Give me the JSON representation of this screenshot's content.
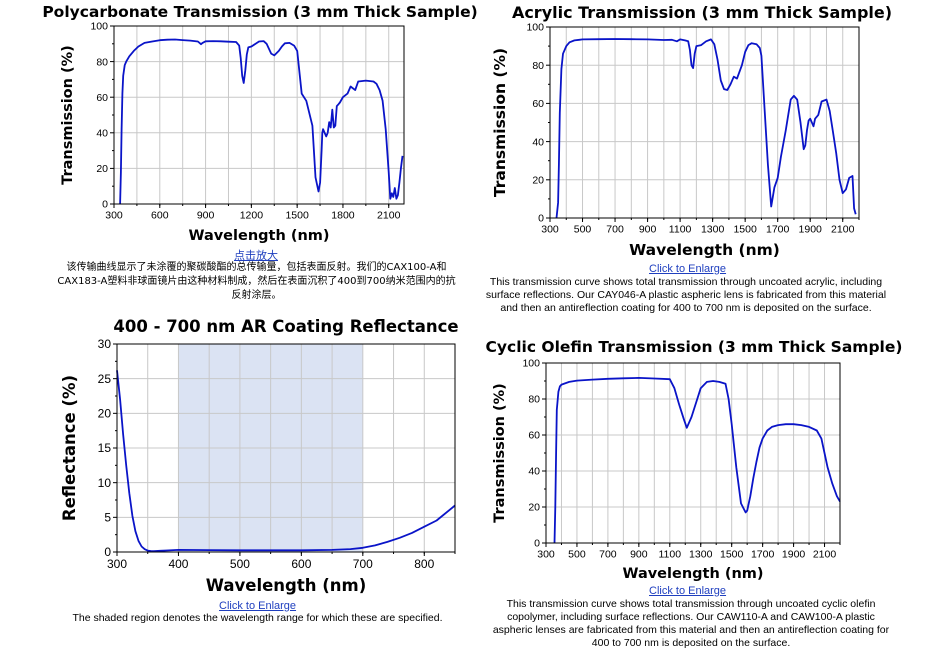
{
  "panels": {
    "polycarbonate": {
      "link": "点击放大",
      "caption": "该传输曲线显示了未涂覆的聚碳酸酯的总传输量，包括表面反射。我们的CAX100-A和CAX183-A塑料非球面镜片由这种材料制成，然后在表面沉积了400到700纳米范围内的抗反射涂层。"
    },
    "acrylic": {
      "link": "Click to Enlarge",
      "caption": "This transmission curve shows total transmission through uncoated acrylic, including surface reflections. Our CAY046-A plastic aspheric lens is fabricated from this material and then an antireflection coating for 400 to 700 nm is deposited on the surface."
    },
    "ar_coating": {
      "link": "Click to Enlarge",
      "caption": "The shaded region denotes the wavelength range for which these are specified."
    },
    "cyclic_olefin": {
      "link": "Click to Enlarge",
      "caption": "This transmission curve shows total transmission through uncoated cyclic olefin copolymer, including surface reflections. Our CAW110-A and CAW100-A plastic aspheric lenses are fabricated from this material and then an antireflection coating for 400 to 700 nm is deposited on the surface."
    }
  },
  "chart_data": [
    {
      "id": "polycarbonate",
      "type": "line",
      "title": "Polycarbonate Transmission (3 mm Thick Sample)",
      "xlabel": "Wavelength (nm)",
      "ylabel": "Transmission (%)",
      "xlim": [
        300,
        2200
      ],
      "ylim": [
        0,
        100
      ],
      "xticks": [
        300,
        600,
        900,
        1200,
        1500,
        1800,
        2100
      ],
      "yticks": [
        0,
        20,
        40,
        60,
        80,
        100
      ],
      "grid": true,
      "line_color": "#0a14c8",
      "x": [
        340,
        345,
        350,
        355,
        360,
        370,
        380,
        400,
        430,
        460,
        500,
        550,
        600,
        650,
        700,
        750,
        800,
        850,
        870,
        880,
        900,
        950,
        1000,
        1050,
        1100,
        1120,
        1130,
        1140,
        1150,
        1160,
        1170,
        1180,
        1200,
        1250,
        1280,
        1300,
        1330,
        1350,
        1380,
        1400,
        1420,
        1450,
        1480,
        1500,
        1530,
        1560,
        1600,
        1610,
        1620,
        1640,
        1650,
        1660,
        1665,
        1670,
        1680,
        1690,
        1700,
        1710,
        1720,
        1730,
        1740,
        1750,
        1760,
        1770,
        1780,
        1800,
        1830,
        1850,
        1880,
        1900,
        1950,
        2000,
        2020,
        2040,
        2060,
        2080,
        2100,
        2110,
        2120,
        2130,
        2140,
        2150,
        2160,
        2170,
        2180,
        2190
      ],
      "y": [
        0,
        18,
        42,
        62,
        72,
        78,
        80,
        83,
        86,
        88.5,
        90.5,
        91.3,
        92,
        92.3,
        92.4,
        92.1,
        91.8,
        91.3,
        89.8,
        90.5,
        91.4,
        91.5,
        91.4,
        91.2,
        91,
        89,
        82,
        72,
        68,
        75,
        84,
        88,
        88.5,
        91.3,
        91.5,
        90,
        84.5,
        83.5,
        86,
        88.5,
        90.3,
        90.5,
        89,
        86,
        62,
        58,
        44,
        30,
        15,
        7,
        12,
        30,
        40,
        42,
        40,
        38,
        40,
        46,
        43,
        53,
        43,
        44,
        55,
        56,
        57,
        60,
        62,
        66,
        64,
        68.8,
        69.3,
        68.8,
        67.5,
        64,
        58,
        42,
        18,
        3,
        6,
        4,
        9,
        3,
        5,
        12,
        20,
        27
      ],
      "draw_link": "polycarbonate"
    },
    {
      "id": "acrylic",
      "type": "line",
      "title": "Acrylic Transmission (3 mm Thick Sample)",
      "xlabel": "Wavelength (nm)",
      "ylabel": "Transmission (%)",
      "xlim": [
        300,
        2200
      ],
      "ylim": [
        0,
        100
      ],
      "xticks": [
        300,
        500,
        700,
        900,
        1100,
        1300,
        1500,
        1700,
        1900,
        2100
      ],
      "yticks": [
        0,
        20,
        40,
        60,
        80,
        100
      ],
      "grid": true,
      "line_color": "#0a14c8",
      "x": [
        340,
        350,
        355,
        360,
        370,
        380,
        400,
        420,
        450,
        480,
        500,
        600,
        700,
        800,
        900,
        1000,
        1050,
        1080,
        1100,
        1130,
        1150,
        1160,
        1170,
        1180,
        1190,
        1200,
        1230,
        1260,
        1290,
        1310,
        1330,
        1350,
        1370,
        1390,
        1410,
        1430,
        1450,
        1480,
        1500,
        1520,
        1540,
        1570,
        1590,
        1600,
        1620,
        1640,
        1660,
        1670,
        1680,
        1700,
        1720,
        1750,
        1780,
        1800,
        1820,
        1840,
        1860,
        1870,
        1880,
        1890,
        1900,
        1920,
        1930,
        1950,
        1970,
        2000,
        2020,
        2040,
        2060,
        2080,
        2100,
        2120,
        2140,
        2160,
        2170,
        2180
      ],
      "y": [
        0,
        8,
        28,
        55,
        78,
        86,
        90,
        92,
        93,
        93.3,
        93.5,
        93.6,
        93.7,
        93.6,
        93.5,
        93.2,
        93.3,
        92.5,
        93.5,
        93,
        92.5,
        88,
        80,
        78.5,
        86,
        90,
        90.5,
        92.5,
        93.5,
        91,
        83,
        72,
        67.5,
        67,
        70,
        74,
        73,
        80,
        87,
        90.5,
        91.5,
        91,
        89,
        85,
        56,
        28,
        6,
        11,
        16,
        21,
        32,
        46,
        62,
        64,
        62,
        50,
        36,
        38,
        46,
        51,
        52,
        48,
        52,
        54,
        61,
        62,
        56,
        45,
        34,
        20,
        13,
        15,
        21,
        22,
        5,
        2
      ],
      "draw_link": "acrylic"
    },
    {
      "id": "ar_coating",
      "type": "line",
      "title": "400 - 700 nm AR Coating Reflectance",
      "xlabel": "Wavelength (nm)",
      "ylabel": "Reflectance (%)",
      "xlim": [
        300,
        850
      ],
      "ylim": [
        0,
        30
      ],
      "xticks": [
        300,
        400,
        500,
        600,
        700,
        800
      ],
      "yticks": [
        0,
        5,
        10,
        15,
        20,
        25,
        30
      ],
      "grid": true,
      "shaded_region": [
        400,
        700
      ],
      "shade_color": "#dbe3f3",
      "line_color": "#0a14c8",
      "x": [
        300,
        305,
        310,
        315,
        320,
        325,
        330,
        335,
        340,
        345,
        350,
        355,
        360,
        370,
        380,
        400,
        450,
        500,
        550,
        600,
        650,
        680,
        700,
        720,
        740,
        760,
        780,
        800,
        820,
        850
      ],
      "y": [
        26.2,
        22,
        17,
        12.5,
        8.5,
        5.2,
        3,
        1.6,
        0.8,
        0.4,
        0.2,
        0.15,
        0.12,
        0.18,
        0.22,
        0.3,
        0.28,
        0.25,
        0.24,
        0.25,
        0.3,
        0.42,
        0.6,
        0.95,
        1.45,
        2.05,
        2.75,
        3.65,
        4.55,
        6.7
      ],
      "draw_link": "ar_coating"
    },
    {
      "id": "cyclic_olefin",
      "type": "line",
      "title": "Cyclic Olefin Transmission (3 mm Thick Sample)",
      "xlabel": "Wavelength (nm)",
      "ylabel": "Transmission (%)",
      "xlim": [
        300,
        2200
      ],
      "ylim": [
        0,
        100
      ],
      "xticks": [
        300,
        500,
        700,
        900,
        1100,
        1300,
        1500,
        1700,
        1900,
        2100
      ],
      "yticks": [
        0,
        20,
        40,
        60,
        80,
        100
      ],
      "grid": true,
      "line_color": "#0a14c8",
      "x": [
        355,
        360,
        365,
        370,
        380,
        390,
        400,
        450,
        500,
        600,
        700,
        800,
        900,
        1000,
        1100,
        1130,
        1160,
        1190,
        1210,
        1240,
        1270,
        1300,
        1340,
        1380,
        1420,
        1460,
        1480,
        1500,
        1530,
        1560,
        1590,
        1600,
        1620,
        1640,
        1660,
        1680,
        1700,
        1730,
        1760,
        1800,
        1850,
        1900,
        1950,
        2000,
        2050,
        2080,
        2100,
        2120,
        2150,
        2180,
        2200
      ],
      "y": [
        0,
        20,
        50,
        74,
        84,
        87,
        88,
        89.5,
        90.2,
        90.8,
        91.2,
        91.5,
        91.7,
        91.4,
        91,
        86,
        77,
        69,
        64,
        70,
        78,
        86,
        89.5,
        90,
        89.5,
        88.5,
        80,
        66,
        42,
        22,
        17,
        18,
        26,
        36,
        45,
        53,
        58,
        62.5,
        64.5,
        65.5,
        66,
        66,
        65.5,
        64.5,
        62.5,
        58,
        50,
        42,
        33,
        26,
        23
      ],
      "draw_link": "cyclic_olefin"
    }
  ]
}
